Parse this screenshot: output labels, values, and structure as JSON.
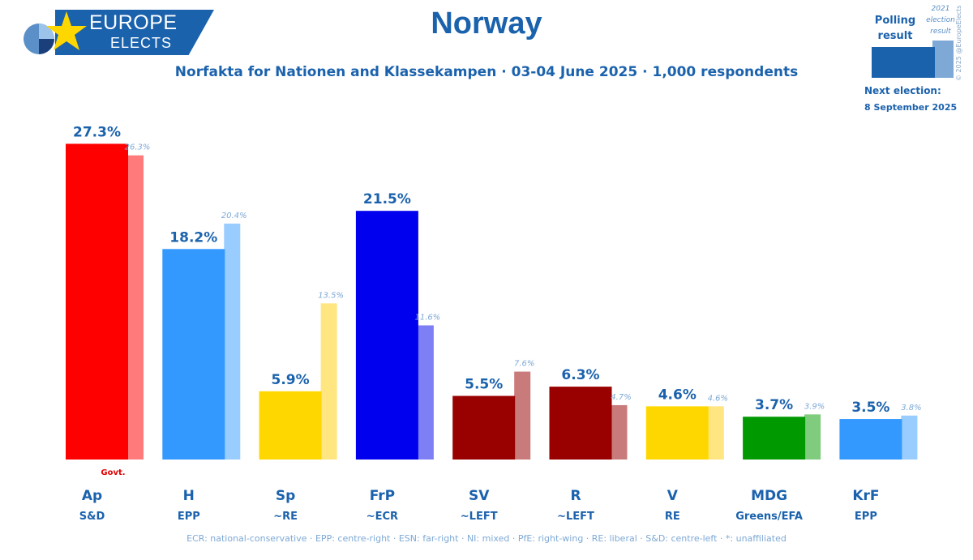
{
  "brand": {
    "line1": "EUROPE",
    "line2": "ELECTS"
  },
  "title": "Norway",
  "subtitle": "Norfakta for Nationen and Klassekampen · 03-04 June 2025 · 1,000 respondents",
  "legend": {
    "poll_label": "Polling result",
    "election_label": "2021 election result",
    "poll_color": "#1b62ad",
    "election_color": "#7ea9d6"
  },
  "copyright": "© 2025 @EuropeElects",
  "next_election": {
    "label": "Next election:",
    "date": "8 September 2025"
  },
  "footnote": "ECR: national-conservative · EPP: centre-right · ESN: far-right · NI: mixed · PfE: right-wing · RE: liberal · S&D: centre-left · *: unaffiliated",
  "chart_data": {
    "type": "bar",
    "title": "Norway",
    "categories": [
      "Ap",
      "H",
      "Sp",
      "FrP",
      "SV",
      "R",
      "V",
      "MDG",
      "KrF"
    ],
    "groups": [
      "S&D",
      "EPP",
      "~RE",
      "~ECR",
      "~LEFT",
      "~LEFT",
      "RE",
      "Greens/EFA",
      "EPP"
    ],
    "series": [
      {
        "name": "Polling result",
        "values": [
          27.3,
          18.2,
          5.9,
          21.5,
          5.5,
          6.3,
          4.6,
          3.7,
          3.5
        ],
        "labels": [
          "27.3%",
          "18.2%",
          "5.9%",
          "21.5%",
          "5.5%",
          "6.3%",
          "4.6%",
          "3.7%",
          "3.5%"
        ]
      },
      {
        "name": "2021 election result",
        "values": [
          26.3,
          20.4,
          13.5,
          11.6,
          7.6,
          4.7,
          4.6,
          3.9,
          3.8
        ],
        "labels": [
          "26.3%",
          "20.4%",
          "13.5%",
          "11.6%",
          "7.6%",
          "4.7%",
          "4.6%",
          "3.9%",
          "3.8%"
        ]
      }
    ],
    "colors": [
      "#ff0000",
      "#3399ff",
      "#ffd700",
      "#0000ee",
      "#990000",
      "#990000",
      "#ffd700",
      "#009900",
      "#3399ff"
    ],
    "election_colors": [
      "#ff7b7b",
      "#99ccff",
      "#ffe680",
      "#7f7ff5",
      "#c97b7b",
      "#c97b7b",
      "#ffe680",
      "#7fcc7f",
      "#99ccff"
    ],
    "annotations": [
      {
        "category": "Ap",
        "text": "Govt."
      }
    ],
    "ylim": [
      0,
      30
    ],
    "xlabel": "",
    "ylabel": ""
  }
}
